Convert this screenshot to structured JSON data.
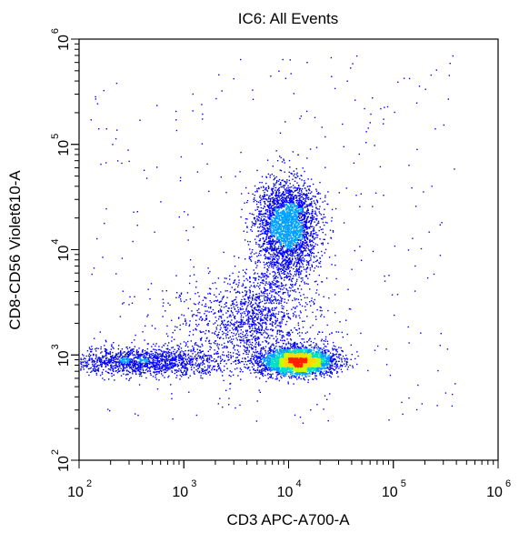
{
  "chart_data": {
    "type": "scatter",
    "title": "IC6: All Events",
    "xlabel": "CD3 APC-A700-A",
    "ylabel": "CD8-CD56 Violet610-A",
    "x_scale": "log",
    "y_scale": "log",
    "xlim": [
      100,
      1000000
    ],
    "ylim": [
      100,
      1000000
    ],
    "x_ticks": [
      {
        "base": "10",
        "exp": "2",
        "value": 100
      },
      {
        "base": "10",
        "exp": "3",
        "value": 1000
      },
      {
        "base": "10",
        "exp": "4",
        "value": 10000
      },
      {
        "base": "10",
        "exp": "5",
        "value": 100000
      },
      {
        "base": "10",
        "exp": "6",
        "value": 1000000
      }
    ],
    "y_ticks": [
      {
        "base": "10",
        "exp": "2",
        "value": 100
      },
      {
        "base": "10",
        "exp": "3",
        "value": 1000
      },
      {
        "base": "10",
        "exp": "4",
        "value": 10000
      },
      {
        "base": "10",
        "exp": "5",
        "value": 100000
      },
      {
        "base": "10",
        "exp": "6",
        "value": 1000000
      }
    ],
    "grid": false,
    "legend": "none",
    "colormap": [
      "#0000ff",
      "#00a0ff",
      "#00e0c0",
      "#c8ff00",
      "#ffd700",
      "#ff2000"
    ],
    "populations": [
      {
        "x_center": 12000,
        "y_center": 880,
        "count": 3200,
        "peak_density": 1.0
      },
      {
        "x_center": 550,
        "y_center": 880,
        "count": 1200,
        "peak_density": 0.55
      },
      {
        "x_center": 9500,
        "y_center": 18000,
        "count": 2600,
        "peak_density": 0.45
      },
      {
        "x_center": 4000,
        "y_center": 2000,
        "count": 900,
        "peak_density": 0.15
      }
    ]
  }
}
